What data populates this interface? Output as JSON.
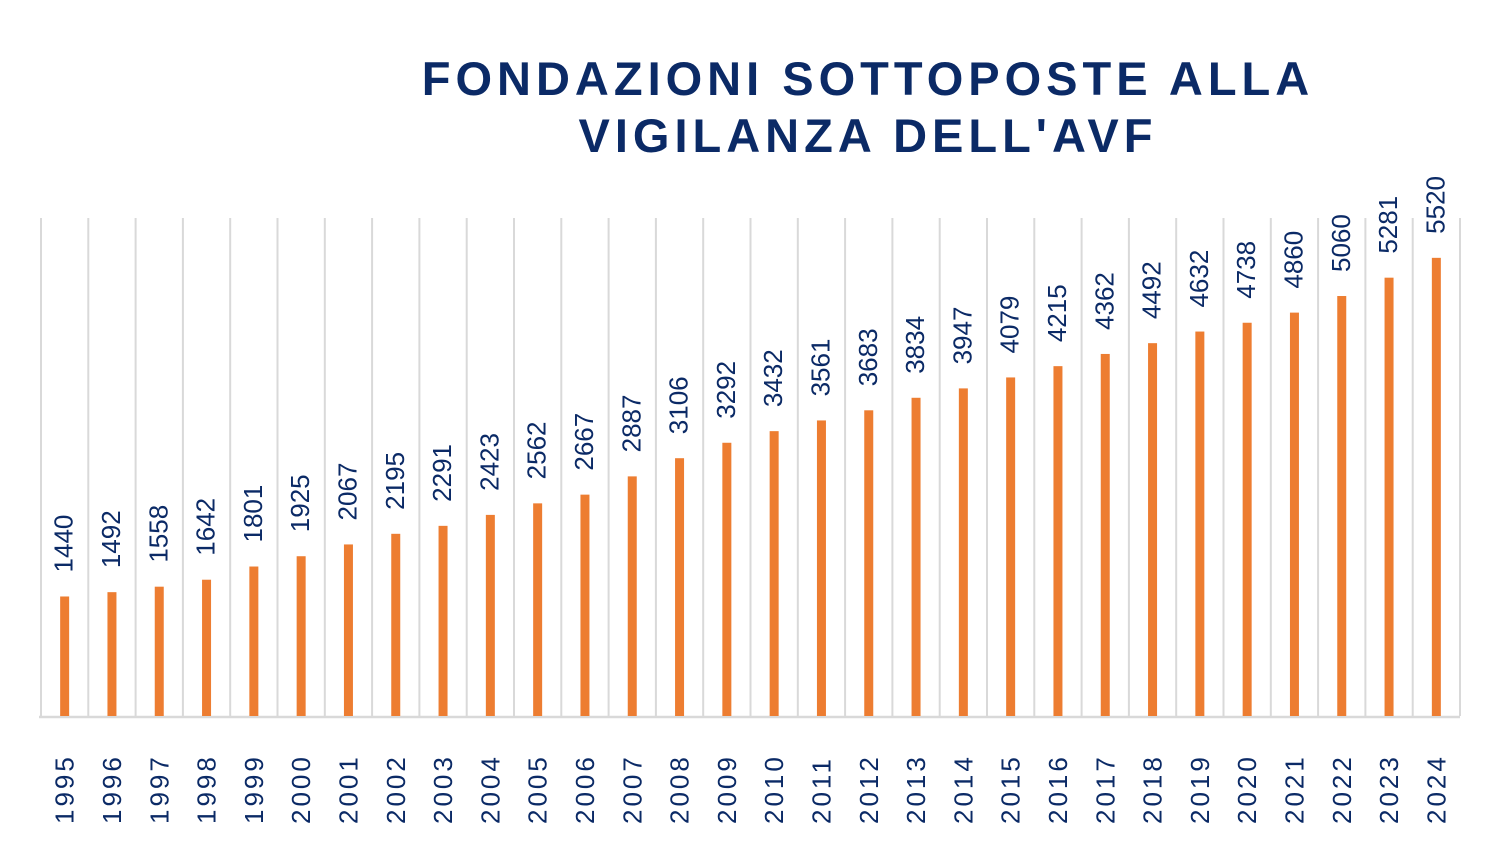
{
  "chart_data": {
    "type": "bar",
    "title": "FONDAZIONI SOTTOPOSTE ALLA VIGILANZA DELL'AVF",
    "xlabel": "",
    "ylabel": "",
    "categories": [
      "1995",
      "1996",
      "1997",
      "1998",
      "1999",
      "2000",
      "2001",
      "2002",
      "2003",
      "2004",
      "2005",
      "2006",
      "2007",
      "2008",
      "2009",
      "2010",
      "2011",
      "2012",
      "2013",
      "2014",
      "2015",
      "2016",
      "2017",
      "2018",
      "2019",
      "2020",
      "2021",
      "2022",
      "2023",
      "2024"
    ],
    "values": [
      1440,
      1492,
      1558,
      1642,
      1801,
      1925,
      2067,
      2195,
      2291,
      2423,
      2562,
      2667,
      2887,
      3106,
      3292,
      3432,
      3561,
      3683,
      3834,
      3947,
      4079,
      4215,
      4362,
      4492,
      4632,
      4738,
      4860,
      5060,
      5281,
      5520
    ],
    "ylim": [
      0,
      6000
    ],
    "grid": "vertical",
    "data_labels": true,
    "legend": "none",
    "colors": {
      "bar": "#ED7D31",
      "text": "#0b2a66",
      "grid": "#d9d9d9"
    }
  }
}
